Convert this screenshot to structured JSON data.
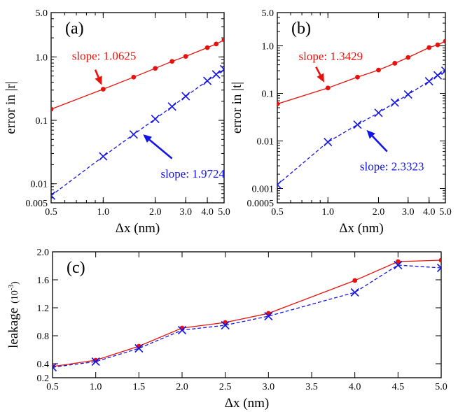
{
  "colors": {
    "red": "#e8120c",
    "blue": "#1414e6",
    "axis": "#000000"
  },
  "chart_data": [
    {
      "panel": "a",
      "panel_label": "(a)",
      "type": "line",
      "xscale": "log",
      "yscale": "log",
      "xlim": [
        0.5,
        5.0
      ],
      "ylim": [
        0.005,
        5.0
      ],
      "xlabel": "Δx (nm)",
      "ylabel": "error in |r|",
      "x_ticks": [
        {
          "v": 0.5,
          "label": "0.5"
        },
        {
          "v": 1.0,
          "label": "1.0"
        },
        {
          "v": 2.0,
          "label": "2.0"
        },
        {
          "v": 3.0,
          "label": "3.0"
        },
        {
          "v": 4.0,
          "label": "4.0"
        },
        {
          "v": 5.0,
          "label": "5.0"
        }
      ],
      "y_ticks": [
        {
          "v": 0.005,
          "label": "0.005"
        },
        {
          "v": 0.01,
          "label": "0.01"
        },
        {
          "v": 0.1,
          "label": "0.1"
        },
        {
          "v": 1.0,
          "label": "1.0"
        },
        {
          "v": 5.0,
          "label": "5.0"
        }
      ],
      "series": [
        {
          "color": "red",
          "marker": "dot",
          "dash": "solid",
          "x": [
            0.5,
            1.0,
            1.5,
            2.0,
            2.5,
            3.0,
            4.0,
            4.5,
            5.0
          ],
          "y": [
            0.15,
            0.31,
            0.48,
            0.66,
            0.85,
            1.02,
            1.4,
            1.6,
            1.85
          ]
        },
        {
          "color": "blue",
          "marker": "x",
          "dash": "dashed",
          "x": [
            0.5,
            1.0,
            1.5,
            2.0,
            2.5,
            3.0,
            4.0,
            4.5,
            5.0
          ],
          "y": [
            0.0065,
            0.027,
            0.06,
            0.105,
            0.165,
            0.24,
            0.42,
            0.53,
            0.64
          ]
        }
      ],
      "annotations": [
        {
          "text": "slope: 1.0625",
          "color": "red",
          "tx": 0.66,
          "ty": 0.9,
          "ax0": 0.9,
          "ay0": 0.63,
          "ax1": 0.98,
          "ay1": 0.36
        },
        {
          "text": "slope: 1.9724",
          "color": "blue",
          "tx": 2.15,
          "ty": 0.0125,
          "ax0": 2.5,
          "ay0": 0.025,
          "ax1": 1.7,
          "ay1": 0.06
        }
      ]
    },
    {
      "panel": "b",
      "panel_label": "(b)",
      "type": "line",
      "xscale": "log",
      "yscale": "log",
      "xlim": [
        0.5,
        5.0
      ],
      "ylim": [
        0.0005,
        5.0
      ],
      "xlabel": "Δx (nm)",
      "ylabel": "error in |t|",
      "x_ticks": [
        {
          "v": 0.5,
          "label": "0.5"
        },
        {
          "v": 1.0,
          "label": "1.0"
        },
        {
          "v": 2.0,
          "label": "2.0"
        },
        {
          "v": 3.0,
          "label": "3.0"
        },
        {
          "v": 4.0,
          "label": "4.0"
        },
        {
          "v": 5.0,
          "label": "5.0"
        }
      ],
      "y_ticks": [
        {
          "v": 0.0005,
          "label": "0.0005"
        },
        {
          "v": 0.001,
          "label": "0.001"
        },
        {
          "v": 0.01,
          "label": "0.01"
        },
        {
          "v": 0.1,
          "label": "0.1"
        },
        {
          "v": 1.0,
          "label": "1.0"
        },
        {
          "v": 5.0,
          "label": "5.0"
        }
      ],
      "series": [
        {
          "color": "red",
          "marker": "dot",
          "dash": "solid",
          "x": [
            0.5,
            1.0,
            1.5,
            2.0,
            2.5,
            3.0,
            4.0,
            4.5,
            5.0
          ],
          "y": [
            0.06,
            0.13,
            0.22,
            0.31,
            0.43,
            0.57,
            0.92,
            1.05,
            1.25
          ]
        },
        {
          "color": "blue",
          "marker": "x",
          "dash": "dashed",
          "x": [
            0.5,
            1.0,
            1.5,
            2.0,
            2.5,
            3.0,
            4.0,
            4.5,
            5.0
          ],
          "y": [
            0.0012,
            0.0095,
            0.022,
            0.039,
            0.064,
            0.095,
            0.18,
            0.24,
            0.3
          ]
        }
      ],
      "annotations": [
        {
          "text": "slope: 1.3429",
          "color": "red",
          "tx": 0.67,
          "ty": 0.5,
          "ax0": 0.85,
          "ay0": 0.36,
          "ax1": 0.95,
          "ay1": 0.17
        },
        {
          "text": "slope: 2.3323",
          "color": "blue",
          "tx": 1.55,
          "ty": 0.0024,
          "ax0": 2.25,
          "ay0": 0.006,
          "ax1": 1.7,
          "ay1": 0.017
        }
      ]
    },
    {
      "panel": "c",
      "panel_label": "(c)",
      "type": "line",
      "xscale": "linear",
      "yscale": "linear",
      "xlim": [
        0.5,
        5.0
      ],
      "ylim": [
        0.2,
        2.0
      ],
      "xlabel": "Δx (nm)",
      "ylabel": "leakage",
      "ylabel_unit": "(10",
      "ylabel_exp": "-3",
      "ylabel_close": ")",
      "x_ticks": [
        {
          "v": 0.5,
          "label": "0.5"
        },
        {
          "v": 1.0,
          "label": "1.0"
        },
        {
          "v": 1.5,
          "label": "1.5"
        },
        {
          "v": 2.0,
          "label": "2.0"
        },
        {
          "v": 2.5,
          "label": "2.5"
        },
        {
          "v": 3.0,
          "label": "3.0"
        },
        {
          "v": 3.5,
          "label": "3.5"
        },
        {
          "v": 4.0,
          "label": "4.0"
        },
        {
          "v": 4.5,
          "label": "4.5"
        },
        {
          "v": 5.0,
          "label": "5.0"
        }
      ],
      "y_ticks": [
        {
          "v": 0.2,
          "label": "0.2"
        },
        {
          "v": 0.4,
          "label": "0.4"
        },
        {
          "v": 0.8,
          "label": "0.8"
        },
        {
          "v": 1.2,
          "label": "1.2"
        },
        {
          "v": 1.6,
          "label": "1.6"
        },
        {
          "v": 2.0,
          "label": "2.0"
        }
      ],
      "series": [
        {
          "color": "red",
          "marker": "dot",
          "dash": "solid",
          "x": [
            0.5,
            1.0,
            1.5,
            2.0,
            2.5,
            3.0,
            4.0,
            4.5,
            5.0
          ],
          "y": [
            0.36,
            0.45,
            0.65,
            0.91,
            0.99,
            1.12,
            1.59,
            1.86,
            1.88
          ]
        },
        {
          "color": "blue",
          "marker": "x",
          "dash": "dashed",
          "x": [
            0.5,
            1.0,
            1.5,
            2.0,
            2.5,
            3.0,
            4.0,
            4.5,
            5.0
          ],
          "y": [
            0.35,
            0.43,
            0.62,
            0.88,
            0.95,
            1.08,
            1.42,
            1.81,
            1.77
          ]
        }
      ],
      "annotations": []
    }
  ]
}
